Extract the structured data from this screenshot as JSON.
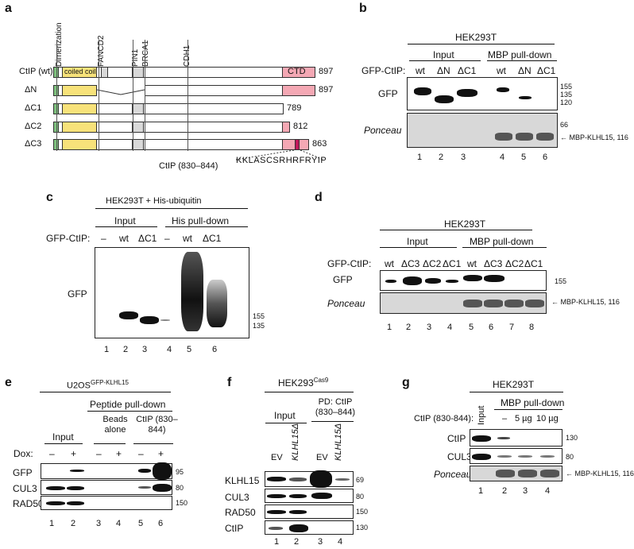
{
  "panels": {
    "a": "a",
    "b": "b",
    "c": "c",
    "d": "d",
    "e": "e",
    "f": "f",
    "g": "g"
  },
  "a": {
    "domains": [
      "Dimerization",
      "FANCD2",
      "PIN1",
      "BRCA1",
      "CDH1"
    ],
    "rows": [
      {
        "label": "CtIP (wt)",
        "size": "897"
      },
      {
        "label": "ΔN",
        "size": "897"
      },
      {
        "label": "ΔC1",
        "size": "789"
      },
      {
        "label": "ΔC2",
        "size": "812"
      },
      {
        "label": "ΔC3",
        "size": "863"
      }
    ],
    "coiled": "coiled coil",
    "ctd": "CTD",
    "peptide_label": "CtIP (830–844)",
    "peptide_seq": "KKLASCSRHRFRYIP"
  },
  "b": {
    "cell": "HEK293T",
    "input": "Input",
    "mbp": "MBP pull-down",
    "gfpctip": "GFP-CtIP:",
    "lanes_top": [
      "wt",
      "ΔN",
      "ΔC1",
      "wt",
      "ΔN",
      "ΔC1"
    ],
    "gfp": "GFP",
    "ponceau": "Ponceau",
    "mw": [
      "155",
      "135",
      "120"
    ],
    "mw_pon": "66",
    "mbp_label": "MBP-KLHL15, 116",
    "lanes": [
      "1",
      "2",
      "3",
      "4",
      "5",
      "6"
    ]
  },
  "c": {
    "cell": "HEK293T + His-ubiquitin",
    "input": "Input",
    "his": "His pull-down",
    "gfpctip": "GFP-CtIP:",
    "lanes_top": [
      "–",
      "wt",
      "ΔC1",
      "–",
      "wt",
      "ΔC1"
    ],
    "gfp": "GFP",
    "mw": [
      "155",
      "135"
    ],
    "lanes": [
      "1",
      "2",
      "3",
      "4",
      "5",
      "6"
    ]
  },
  "d": {
    "cell": "HEK293T",
    "input": "Input",
    "mbp": "MBP pull-down",
    "gfpctip": "GFP-CtIP:",
    "lanes_top": [
      "wt",
      "ΔC3",
      "ΔC2",
      "ΔC1",
      "wt",
      "ΔC3",
      "ΔC2",
      "ΔC1"
    ],
    "gfp": "GFP",
    "ponceau": "Ponceau",
    "mw": "155",
    "mbp_label": "MBP-KLHL15, 116",
    "lanes": [
      "1",
      "2",
      "3",
      "4",
      "5",
      "6",
      "7",
      "8"
    ]
  },
  "e": {
    "cell": "U2OS",
    "cell_sup": "GFP-KLHL15",
    "peptide": "Peptide pull-down",
    "input": "Input",
    "beads": "Beads alone",
    "ctip": "CtIP (830–844)",
    "dox": "Dox:",
    "dox_vals": [
      "–",
      "+",
      "–",
      "+",
      "–",
      "+"
    ],
    "rows": [
      "GFP",
      "CUL3",
      "RAD50"
    ],
    "mw": [
      "95",
      "80",
      "150"
    ],
    "lanes": [
      "1",
      "2",
      "3",
      "4",
      "5",
      "6"
    ]
  },
  "f": {
    "cell": "HEK293",
    "cell_sup": "Cas9",
    "pd": "PD: CtIP (830–844)",
    "input": "Input",
    "lanes_top": [
      "EV",
      "KLHL15Δ",
      "EV",
      "KLHL15Δ"
    ],
    "rows": [
      "KLHL15",
      "CUL3",
      "RAD50",
      "CtIP"
    ],
    "mw": [
      "69",
      "80",
      "150",
      "130"
    ],
    "lanes": [
      "1",
      "2",
      "3",
      "4"
    ]
  },
  "g": {
    "cell": "HEK293T",
    "mbp": "MBP pull-down",
    "input": "Input",
    "ctip_lbl": "CtIP (830-844):",
    "conc": [
      "–",
      "5 µg",
      "10 µg"
    ],
    "rows": [
      "CtIP",
      "CUL3",
      "Ponceau"
    ],
    "mw": [
      "130",
      "80"
    ],
    "mbp_label": "MBP-KLHL15, 116",
    "lanes": [
      "1",
      "2",
      "3",
      "4"
    ]
  }
}
